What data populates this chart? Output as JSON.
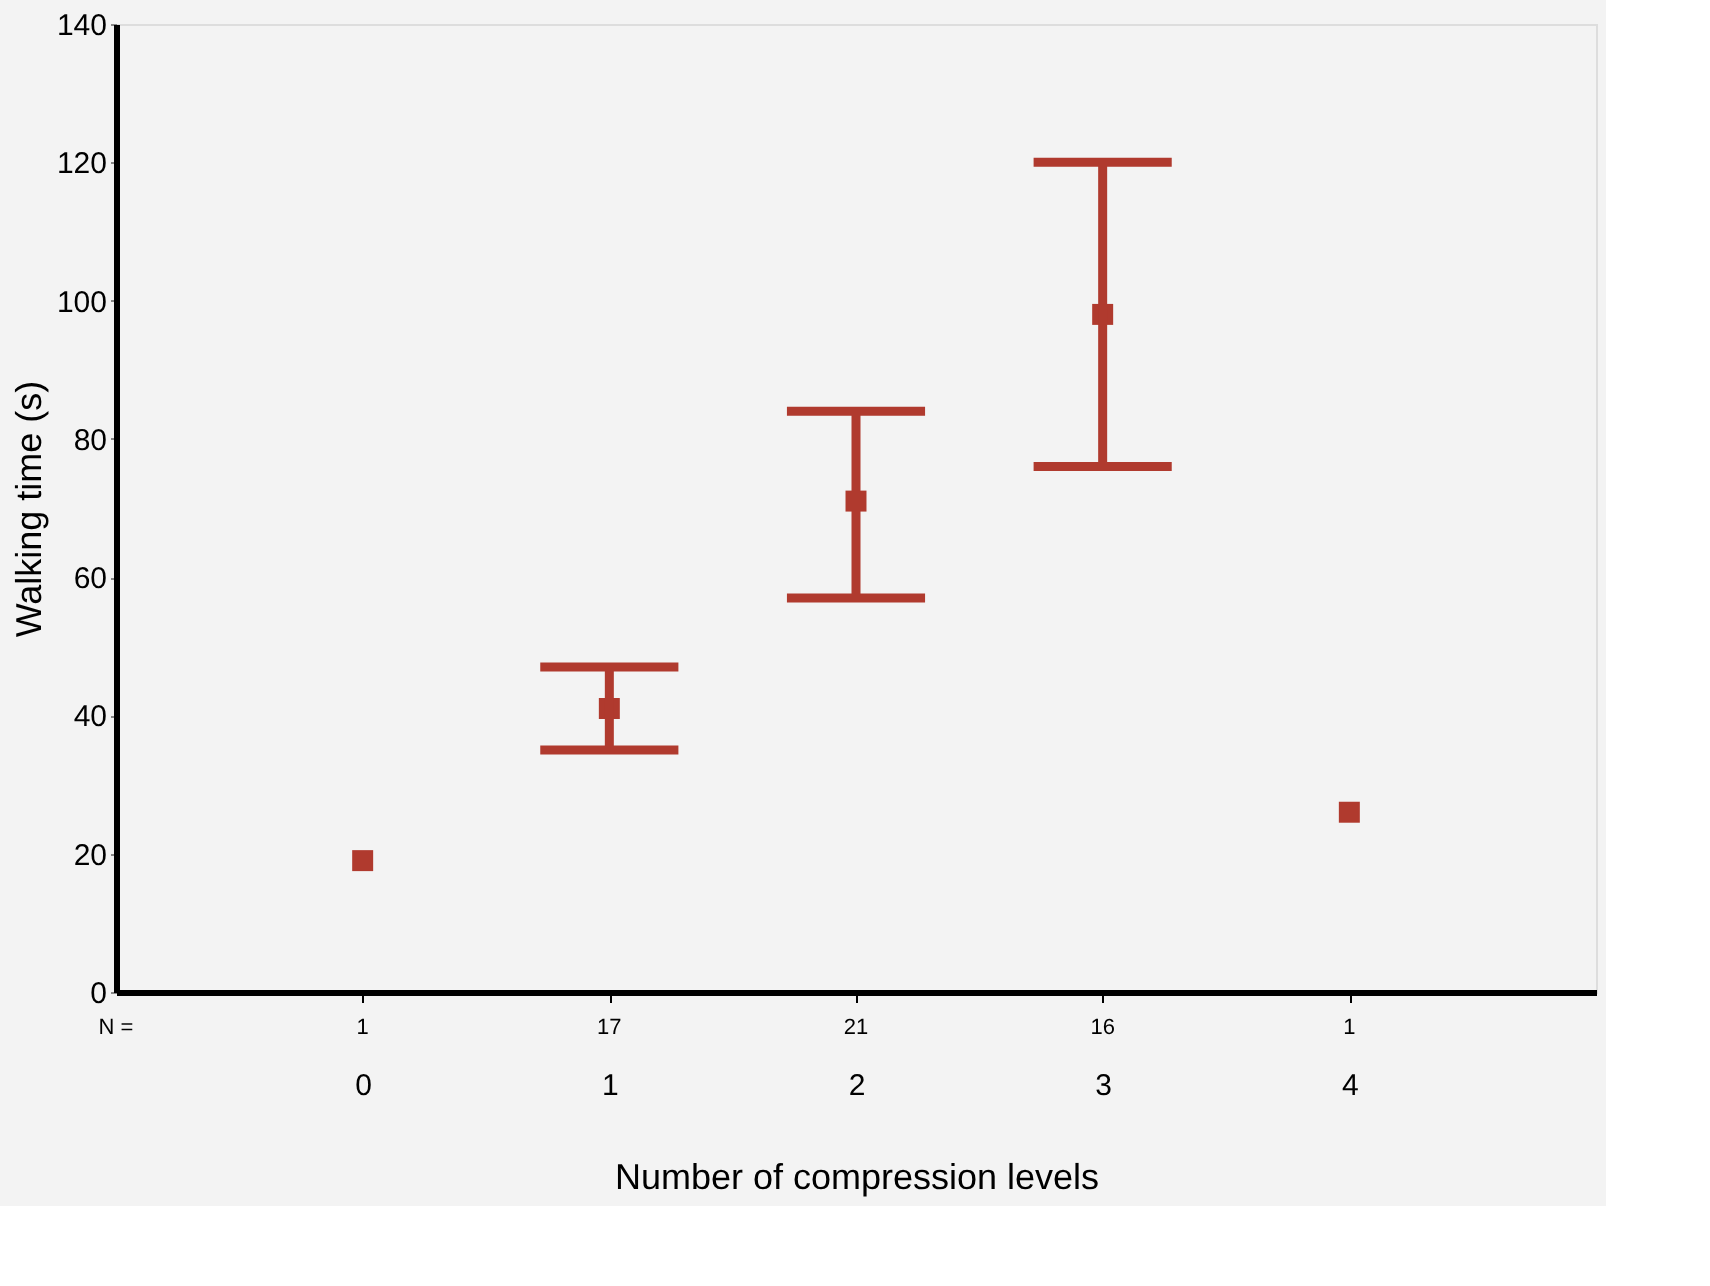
{
  "chart_data": {
    "type": "scatter",
    "xlabel": "Number of compression levels",
    "ylabel": "Walking time (s)",
    "categories": [
      "0",
      "1",
      "2",
      "3",
      "4"
    ],
    "series": [
      {
        "color": "#b03a2e",
        "values": [
          19,
          41,
          71,
          98,
          26
        ],
        "errors": [
          null,
          [
            35,
            47
          ],
          [
            57,
            84
          ],
          [
            76,
            120
          ],
          null
        ]
      }
    ],
    "ylim": [
      0,
      140
    ],
    "yticks": [
      0,
      20,
      40,
      60,
      80,
      100,
      120,
      140
    ],
    "grid": false,
    "legend": false,
    "marker": "square",
    "annotations": [
      "N =",
      "1",
      "17",
      "21",
      "16",
      "1"
    ]
  }
}
